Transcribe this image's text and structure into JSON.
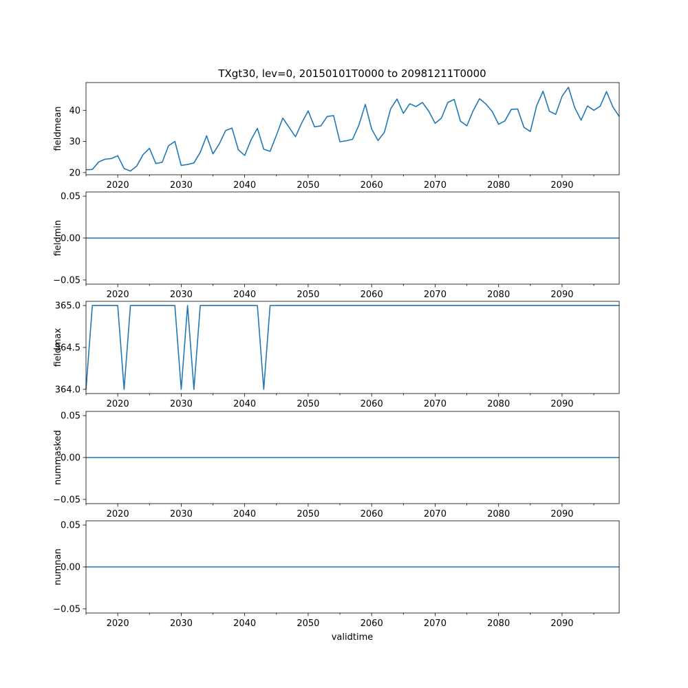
{
  "title": "TXgt30, lev=0, 20150101T0000 to 20981211T0000",
  "xlabel": "validtime",
  "chart_data": [
    {
      "type": "line",
      "ylabel": "fieldmean",
      "color": "#1f77b4",
      "xlim": [
        2015,
        2099
      ],
      "ylim": [
        19.3,
        48.9
      ],
      "xticks": [
        2020,
        2030,
        2040,
        2050,
        2060,
        2070,
        2080,
        2090
      ],
      "yticks": [
        20,
        30,
        40
      ],
      "ytick_labels": [
        "20",
        "30",
        "40"
      ],
      "x": [
        2015,
        2016,
        2017,
        2018,
        2019,
        2020,
        2021,
        2022,
        2023,
        2024,
        2025,
        2026,
        2027,
        2028,
        2029,
        2030,
        2031,
        2032,
        2033,
        2034,
        2035,
        2036,
        2037,
        2038,
        2039,
        2040,
        2041,
        2042,
        2043,
        2044,
        2045,
        2046,
        2047,
        2048,
        2049,
        2050,
        2051,
        2052,
        2053,
        2054,
        2055,
        2056,
        2057,
        2058,
        2059,
        2060,
        2061,
        2062,
        2063,
        2064,
        2065,
        2066,
        2067,
        2068,
        2069,
        2070,
        2071,
        2072,
        2073,
        2074,
        2075,
        2076,
        2077,
        2078,
        2079,
        2080,
        2081,
        2082,
        2083,
        2084,
        2085,
        2086,
        2087,
        2088,
        2089,
        2090,
        2091,
        2092,
        2093,
        2094,
        2095,
        2096,
        2097,
        2098,
        2099
      ],
      "values": [
        20.9,
        21.0,
        23.4,
        24.3,
        24.5,
        25.4,
        21.3,
        20.5,
        22.1,
        25.8,
        27.8,
        22.9,
        23.3,
        28.6,
        30.0,
        22.3,
        22.6,
        23.1,
        26.5,
        31.8,
        26.0,
        29.2,
        33.5,
        34.3,
        27.3,
        25.5,
        30.5,
        34.2,
        27.5,
        26.8,
        32.0,
        37.5,
        34.5,
        31.5,
        36.0,
        39.8,
        34.7,
        35.0,
        38.0,
        38.3,
        29.9,
        30.2,
        30.7,
        35.3,
        41.9,
        34.0,
        30.3,
        32.9,
        40.5,
        43.6,
        39.0,
        42.1,
        41.2,
        42.5,
        39.7,
        35.8,
        37.5,
        42.5,
        43.5,
        36.5,
        35.0,
        39.9,
        43.7,
        42.0,
        39.6,
        35.5,
        36.6,
        40.3,
        40.4,
        34.5,
        33.2,
        41.5,
        46.1,
        39.7,
        38.7,
        44.5,
        47.4,
        40.8,
        36.8,
        41.4,
        40.0,
        41.3,
        46.0,
        41.1,
        38.0
      ]
    },
    {
      "type": "line",
      "ylabel": "fieldmin",
      "color": "#1f77b4",
      "xlim": [
        2015,
        2099
      ],
      "ylim": [
        -0.055,
        0.055
      ],
      "xticks": [
        2020,
        2030,
        2040,
        2050,
        2060,
        2070,
        2080,
        2090
      ],
      "yticks": [
        -0.05,
        0,
        0.05
      ],
      "ytick_labels": [
        "−0.05",
        "0.00",
        "0.05"
      ],
      "x": [
        2015,
        2099
      ],
      "values": [
        0,
        0
      ]
    },
    {
      "type": "line",
      "ylabel": "fieldmax",
      "color": "#1f77b4",
      "xlim": [
        2015,
        2099
      ],
      "ylim": [
        363.95,
        365.05
      ],
      "xticks": [
        2020,
        2030,
        2040,
        2050,
        2060,
        2070,
        2080,
        2090
      ],
      "yticks": [
        364.0,
        364.5,
        365.0
      ],
      "ytick_labels": [
        "364.0",
        "364.5",
        "365.0"
      ],
      "x": [
        2015,
        2016,
        2020,
        2021,
        2022,
        2029,
        2030,
        2031,
        2032,
        2033,
        2042,
        2043,
        2044,
        2099
      ],
      "values": [
        364,
        365,
        365,
        364,
        365,
        365,
        364,
        365,
        364,
        365,
        365,
        364,
        365,
        365
      ]
    },
    {
      "type": "line",
      "ylabel": "nummasked",
      "color": "#1f77b4",
      "xlim": [
        2015,
        2099
      ],
      "ylim": [
        -0.055,
        0.055
      ],
      "xticks": [
        2020,
        2030,
        2040,
        2050,
        2060,
        2070,
        2080,
        2090
      ],
      "yticks": [
        -0.05,
        0,
        0.05
      ],
      "ytick_labels": [
        "−0.05",
        "0.00",
        "0.05"
      ],
      "x": [
        2015,
        2099
      ],
      "values": [
        0,
        0
      ]
    },
    {
      "type": "line",
      "ylabel": "numnan",
      "color": "#1f77b4",
      "xlim": [
        2015,
        2099
      ],
      "ylim": [
        -0.055,
        0.055
      ],
      "xticks": [
        2020,
        2030,
        2040,
        2050,
        2060,
        2070,
        2080,
        2090
      ],
      "yticks": [
        -0.05,
        0,
        0.05
      ],
      "ytick_labels": [
        "−0.05",
        "0.00",
        "0.05"
      ],
      "x": [
        2015,
        2099
      ],
      "values": [
        0,
        0
      ]
    }
  ]
}
